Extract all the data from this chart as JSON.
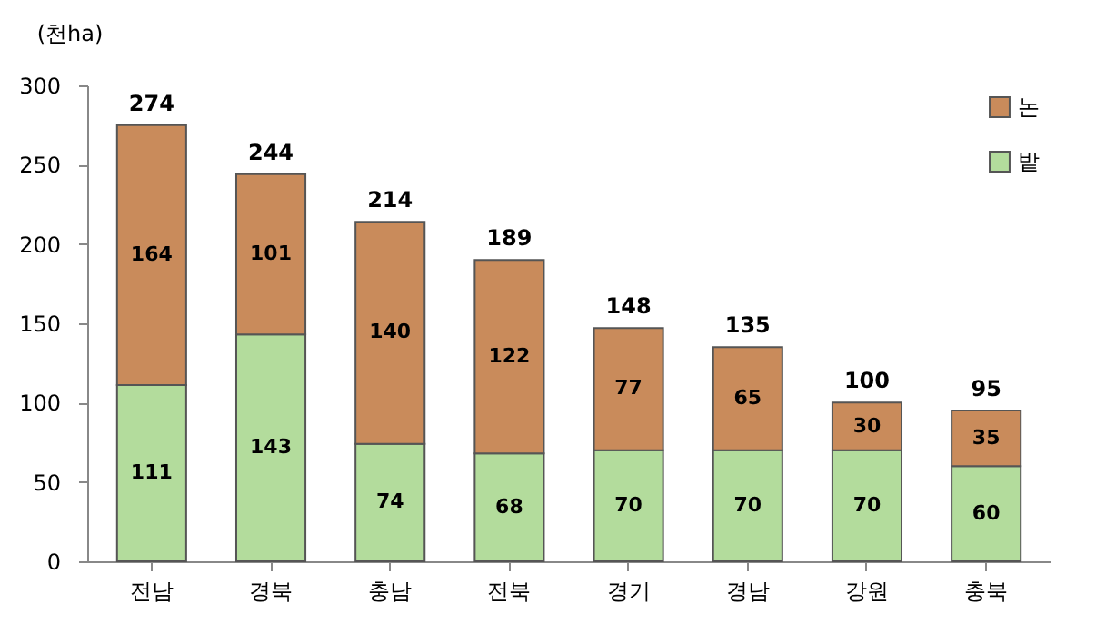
{
  "chart_data": {
    "type": "bar",
    "stacked": true,
    "ylabel": "(천ha)",
    "categories": [
      "전남",
      "경북",
      "충남",
      "전북",
      "경기",
      "경남",
      "강원",
      "충북"
    ],
    "series": [
      {
        "name": "밭",
        "color": "#b3dc9c",
        "values": [
          111,
          143,
          74,
          68,
          70,
          70,
          70,
          60
        ]
      },
      {
        "name": "논",
        "color": "#c98b5b",
        "values": [
          164,
          101,
          140,
          122,
          77,
          65,
          30,
          35
        ]
      }
    ],
    "totals": [
      "274",
      "244",
      "214",
      "189",
      "148",
      "135",
      "100",
      "95"
    ],
    "ylim": [
      0,
      300
    ],
    "yticks": [
      0,
      50,
      100,
      150,
      200,
      250,
      300
    ],
    "grid": false,
    "legend": "top right",
    "data_labels": true
  }
}
